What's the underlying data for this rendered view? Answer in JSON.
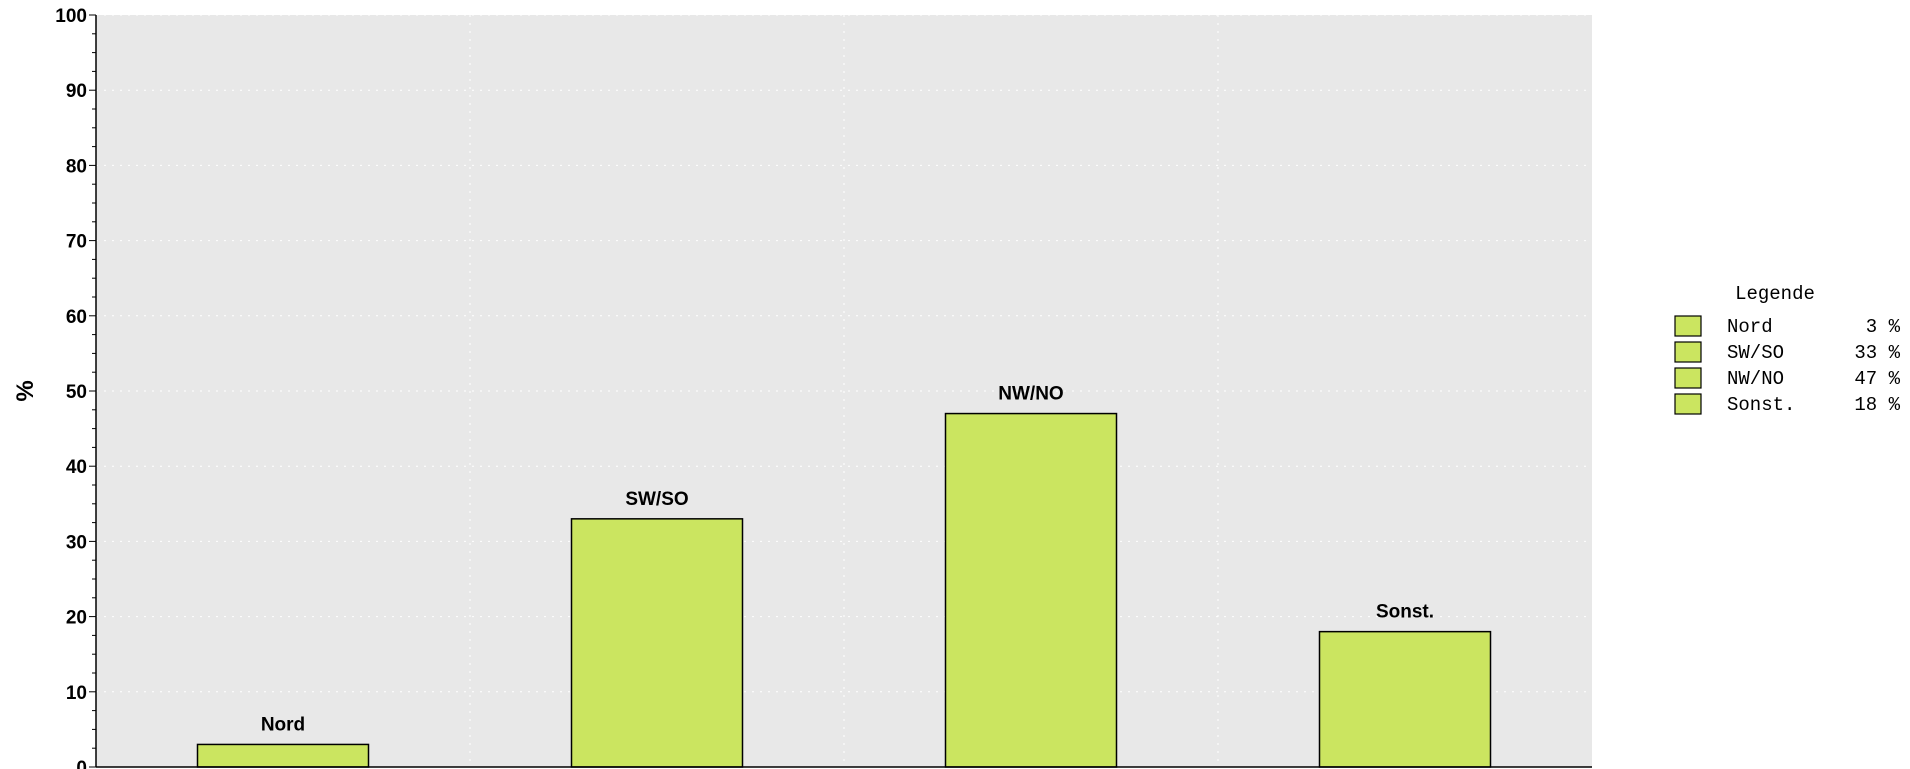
{
  "chart_data": {
    "type": "bar",
    "categories": [
      "Nord",
      "SW/SO",
      "NW/NO",
      "Sonst."
    ],
    "values": [
      3,
      33,
      47,
      18
    ],
    "xlabel": "",
    "ylabel": "%",
    "ylim": [
      0,
      100
    ],
    "yticks": [
      0,
      10,
      20,
      30,
      40,
      50,
      60,
      70,
      80,
      90,
      100
    ],
    "grid": true,
    "bar_labels": [
      "Nord",
      "SW/SO",
      "NW/NO",
      "Sonst."
    ],
    "legend": {
      "title": "Legende",
      "placement": "right",
      "entries": [
        {
          "name": "Nord",
          "value": "3 %"
        },
        {
          "name": "SW/SO",
          "value": "33 %"
        },
        {
          "name": "NW/NO",
          "value": "47 %"
        },
        {
          "name": "Sonst.",
          "value": "18 %"
        }
      ]
    }
  },
  "colors": {
    "bar": "#cbe560",
    "plot_background": "#e8e8e8",
    "grid": "#ffffff"
  }
}
